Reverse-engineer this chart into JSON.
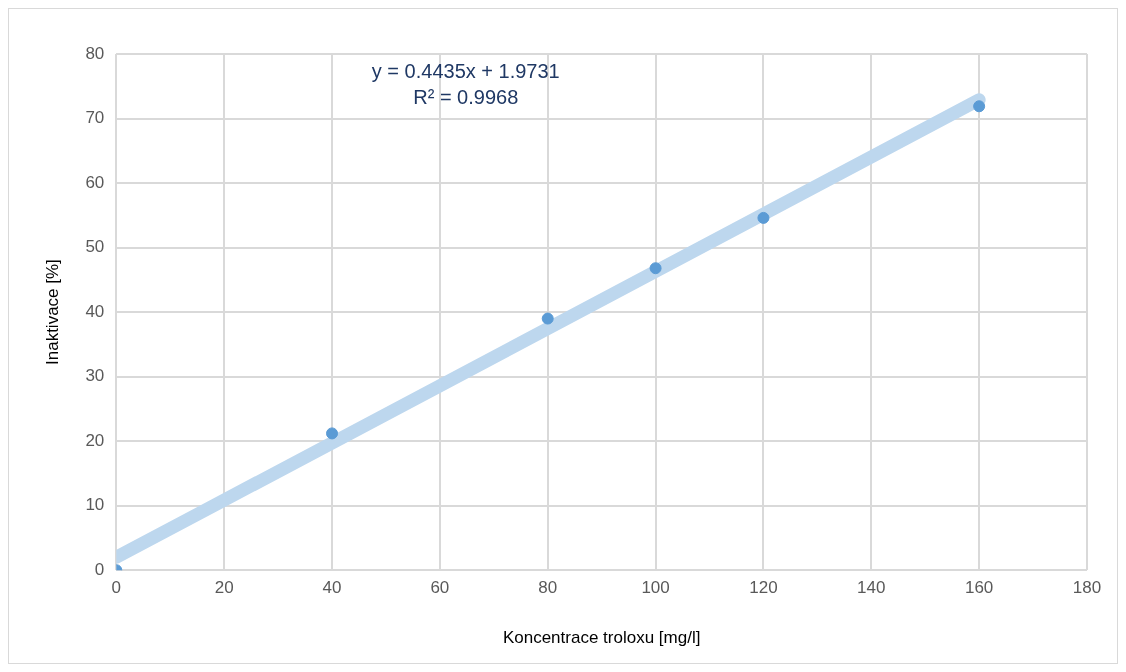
{
  "chart_data": {
    "type": "scatter",
    "xlabel": "Koncentrace troloxu [mg/l]",
    "ylabel": "Inaktivace [%]",
    "xlim": [
      0,
      180
    ],
    "xticks": [
      0,
      20,
      40,
      60,
      80,
      100,
      120,
      140,
      160,
      180
    ],
    "ylim": [
      0,
      80
    ],
    "yticks": [
      0,
      10,
      20,
      30,
      40,
      50,
      60,
      70,
      80
    ],
    "grid": true,
    "legend": false,
    "marker": "circle",
    "series": [
      {
        "type": "line",
        "color": "#bdd7ee",
        "x": [
          0,
          160
        ],
        "values": [
          2,
          72.9
        ],
        "marker": "none",
        "line_style": "solid"
      },
      {
        "color": "#5b9bd5",
        "x": [
          0,
          40,
          80,
          100,
          120,
          160
        ],
        "values": [
          0,
          21.2,
          39,
          46.8,
          54.6,
          71.9
        ]
      }
    ],
    "annotations": [
      "y = 0.4435x + 1.9731",
      "R² = 0.9968"
    ]
  }
}
